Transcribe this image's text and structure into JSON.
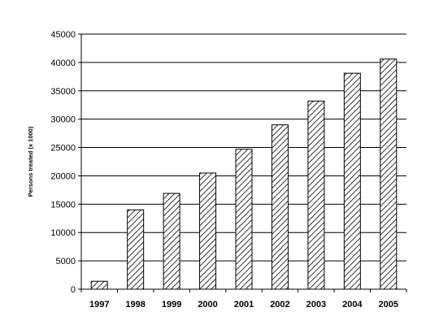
{
  "chart_data": {
    "type": "bar",
    "title": "",
    "xlabel": "",
    "ylabel": "Persons treated (x 1000)",
    "categories": [
      "1997",
      "1998",
      "1999",
      "2000",
      "2001",
      "2002",
      "2003",
      "2004",
      "2005"
    ],
    "values": [
      1400,
      14000,
      16900,
      20500,
      24700,
      29000,
      33200,
      38100,
      40600
    ],
    "ylim": [
      0,
      45000
    ],
    "yticks": [
      0,
      5000,
      10000,
      15000,
      20000,
      25000,
      30000,
      35000,
      40000,
      45000
    ],
    "grid": true,
    "legend": "none",
    "bar_fill": "hatched",
    "colors": {
      "bar_stroke": "#000000",
      "hatch": "#000000",
      "grid": "#000000"
    }
  }
}
